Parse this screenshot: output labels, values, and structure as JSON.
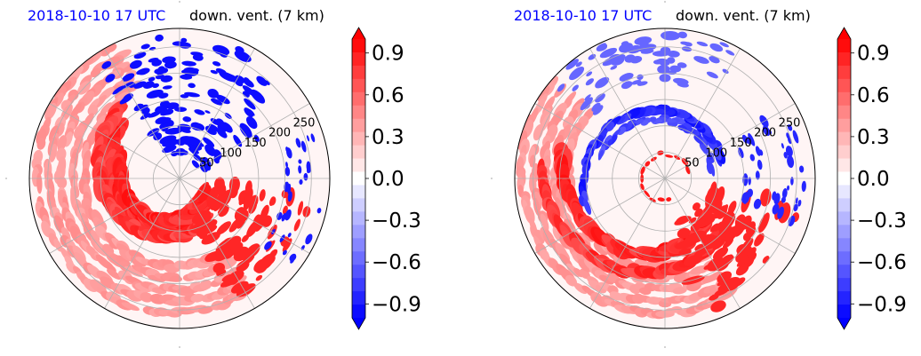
{
  "chart_data": [
    {
      "type": "heatmap",
      "projection": "polar",
      "title_left": "2018-10-10 17 UTC",
      "title_right": "down. vent. (7 km)",
      "radial_ticks": [
        "50",
        "100",
        "150",
        "200",
        "250"
      ],
      "radial_tick_values": [
        50,
        100,
        150,
        200,
        250
      ],
      "rmax": 285,
      "colorbar": {
        "colormap": "bwr",
        "extend": "both",
        "vmin": -1.0,
        "vmax": 1.0,
        "ticks": [
          "0.9",
          "0.6",
          "0.3",
          "0.0",
          "−0.3",
          "−0.6",
          "−0.9"
        ],
        "tick_values": [
          0.9,
          0.6,
          0.3,
          0.0,
          -0.3,
          -0.6,
          -0.9
        ]
      },
      "features": [
        {
          "kind": "positive-spiral-band",
          "value": 0.9
        },
        {
          "kind": "negative-cluster",
          "value": -0.9
        }
      ]
    },
    {
      "type": "heatmap",
      "projection": "polar",
      "title_left": "2018-10-10 17 UTC",
      "title_right": "down. vent. (7 km)",
      "radial_ticks": [
        "50",
        "100",
        "150",
        "200",
        "250"
      ],
      "radial_tick_values": [
        50,
        100,
        150,
        200,
        250
      ],
      "rmax": 285,
      "colorbar": {
        "colormap": "bwr",
        "extend": "both",
        "vmin": -1.0,
        "vmax": 1.0,
        "ticks": [
          "0.9",
          "0.6",
          "0.3",
          "0.0",
          "−0.3",
          "−0.6",
          "−0.9"
        ],
        "tick_values": [
          0.9,
          0.6,
          0.3,
          0.0,
          -0.3,
          -0.6,
          -0.9
        ]
      },
      "features": [
        {
          "kind": "positive-spiral-band",
          "value": 0.9
        },
        {
          "kind": "negative-spiral-band",
          "value": -0.7
        }
      ]
    }
  ]
}
